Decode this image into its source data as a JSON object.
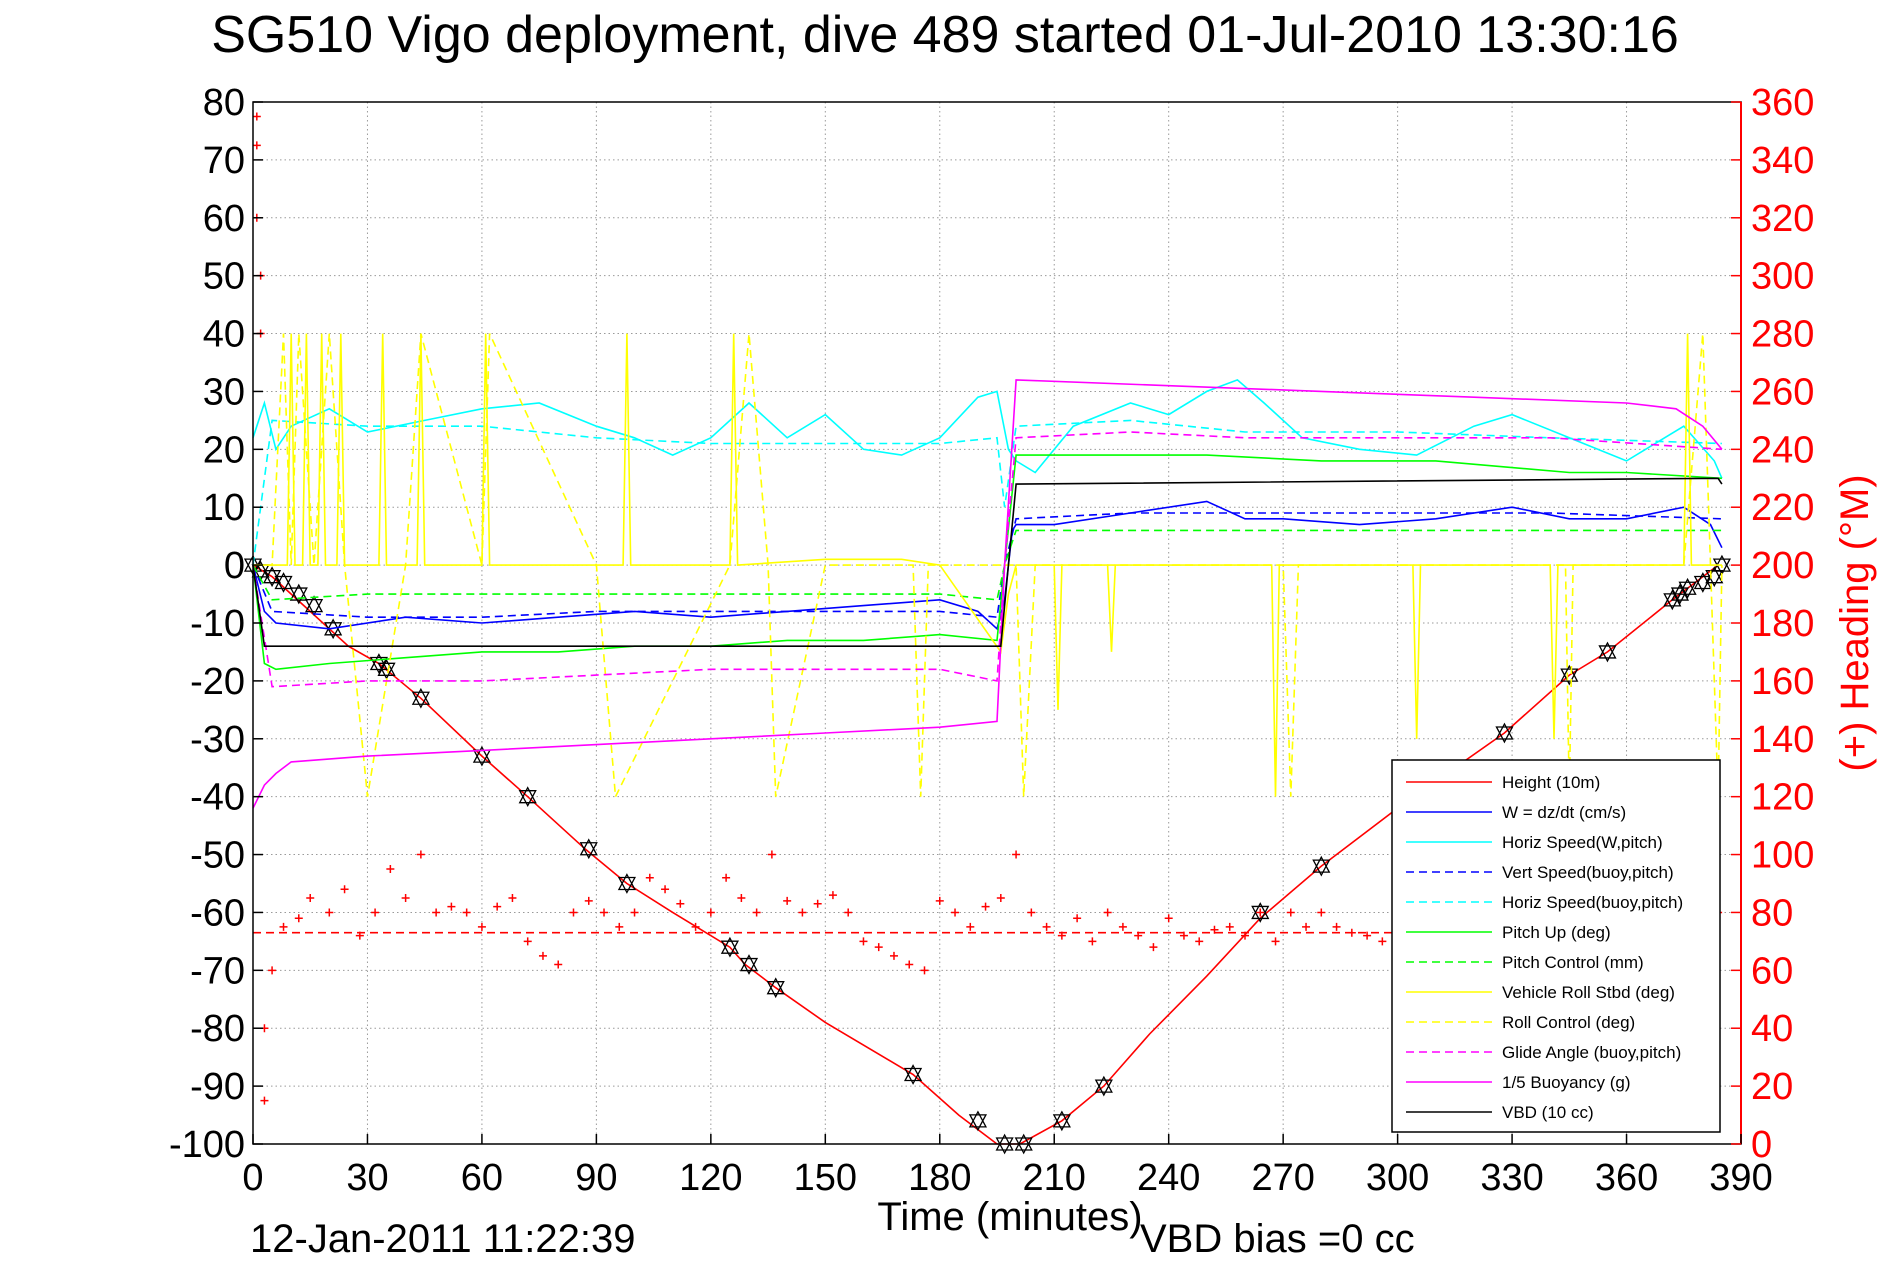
{
  "chart_data": {
    "type": "line",
    "title": "SG510 Vigo deployment, dive 489 started 01-Jul-2010 13:30:16",
    "xlabel": "Time (minutes)",
    "ylabel": "",
    "y2label": "(+) Heading (°M)",
    "footer_left": "12-Jan-2011 11:22:39",
    "footer_right": "VBD bias =0 cc",
    "xlim": [
      0,
      390
    ],
    "ylim": [
      -100,
      80
    ],
    "y2lim": [
      0,
      360
    ],
    "grid": true,
    "legend_position": "bottom-right",
    "x_ticks": [
      "0",
      "30",
      "60",
      "90",
      "120",
      "150",
      "180",
      "210",
      "240",
      "270",
      "300",
      "330",
      "360",
      "390"
    ],
    "y_ticks": [
      "80",
      "70",
      "60",
      "50",
      "40",
      "30",
      "20",
      "10",
      "0",
      "-10",
      "-20",
      "-30",
      "-40",
      "-50",
      "-60",
      "-70",
      "-80",
      "-90",
      "-100"
    ],
    "y2_ticks": [
      "360",
      "340",
      "320",
      "300",
      "280",
      "260",
      "240",
      "220",
      "200",
      "180",
      "160",
      "140",
      "120",
      "100",
      "80",
      "60",
      "40",
      "20",
      "0"
    ],
    "colors": {
      "height": "#ff0000",
      "w": "#0000ff",
      "horiz_speed": "#00ffff",
      "vert_speed_buoy": "#0000ff",
      "horiz_speed_buoy": "#00ffff",
      "pitch_up": "#00ff00",
      "pitch_control": "#00ff00",
      "roll": "#ffff00",
      "roll_control": "#ffff00",
      "glide_angle": "#ff00ff",
      "buoyancy": "#ff00ff",
      "vbd": "#000000",
      "heading": "#ff0000",
      "heading_axis": "#ff0000"
    },
    "legend": [
      {
        "key": "height",
        "label": "Height (10m)",
        "style": "solid"
      },
      {
        "key": "w",
        "label": "W = dz/dt (cm/s)",
        "style": "solid"
      },
      {
        "key": "horiz_speed",
        "label": "Horiz Speed(W,pitch)",
        "style": "solid"
      },
      {
        "key": "vert_speed_buoy",
        "label": "Vert Speed(buoy,pitch)",
        "style": "dashed"
      },
      {
        "key": "horiz_speed_buoy",
        "label": "Horiz Speed(buoy,pitch)",
        "style": "dashed"
      },
      {
        "key": "pitch_up",
        "label": "Pitch Up (deg)",
        "style": "solid"
      },
      {
        "key": "pitch_control",
        "label": "Pitch Control (mm)",
        "style": "dashed"
      },
      {
        "key": "roll",
        "label": "Vehicle Roll Stbd (deg)",
        "style": "solid"
      },
      {
        "key": "roll_control",
        "label": "Roll Control (deg)",
        "style": "dashed"
      },
      {
        "key": "glide_angle",
        "label": "Glide Angle (buoy,pitch)",
        "style": "dashed"
      },
      {
        "key": "buoyancy",
        "label": "1/5 Buoyancy (g)",
        "style": "solid"
      },
      {
        "key": "vbd",
        "label": "VBD (10 cc)",
        "style": "solid"
      }
    ],
    "series": [
      {
        "key": "height",
        "style": "solid",
        "x": [
          0,
          5,
          10,
          15,
          20,
          25,
          33,
          44,
          60,
          72,
          87,
          98,
          110,
          125,
          129,
          137,
          150,
          173,
          185,
          195,
          201,
          212,
          223,
          235,
          250,
          264,
          280,
          300,
          328,
          345,
          355,
          372,
          378,
          384
        ],
        "y": [
          0,
          -2,
          -5,
          -8,
          -11,
          -14,
          -17,
          -23,
          -33,
          -40,
          -49,
          -55,
          -60,
          -66,
          -69,
          -73,
          -79,
          -88,
          -95,
          -100,
          -100,
          -96,
          -90,
          -81,
          -71,
          -61,
          -52,
          -42,
          -29,
          -19,
          -15,
          -6,
          -3,
          0
        ]
      },
      {
        "key": "height_markers",
        "style": "markers",
        "x": [
          0,
          2,
          5,
          8,
          12,
          16,
          21,
          33,
          35,
          44,
          60,
          72,
          88,
          98,
          125,
          130,
          137,
          173,
          190,
          197,
          202,
          212,
          223,
          264,
          280,
          328,
          345,
          355,
          372,
          374,
          376,
          380,
          383,
          385
        ],
        "y": [
          0,
          -1,
          -2,
          -3,
          -5,
          -7,
          -11,
          -17,
          -18,
          -23,
          -33,
          -40,
          -49,
          -55,
          -66,
          -69,
          -73,
          -88,
          -96,
          -100,
          -100,
          -96,
          -90,
          -60,
          -52,
          -29,
          -19,
          -15,
          -6,
          -5,
          -4,
          -3,
          -2,
          0
        ]
      },
      {
        "key": "w",
        "style": "solid",
        "x": [
          0,
          3,
          6,
          20,
          40,
          60,
          80,
          100,
          120,
          140,
          160,
          180,
          190,
          195,
          197,
          199,
          200,
          210,
          230,
          250,
          260,
          270,
          290,
          310,
          330,
          345,
          360,
          375,
          382,
          385
        ],
        "y": [
          0,
          -8,
          -10,
          -11,
          -9,
          -10,
          -9,
          -8,
          -9,
          -8,
          -7,
          -6,
          -8,
          -11,
          -6,
          6,
          7,
          7,
          9,
          11,
          8,
          8,
          7,
          8,
          10,
          8,
          8,
          10,
          7,
          3
        ]
      },
      {
        "key": "horiz_speed",
        "style": "solid",
        "x": [
          0,
          3,
          6,
          10,
          20,
          30,
          45,
          60,
          75,
          90,
          100,
          110,
          120,
          130,
          140,
          150,
          160,
          170,
          180,
          190,
          195,
          198,
          200,
          205,
          215,
          230,
          240,
          250,
          258,
          265,
          275,
          290,
          305,
          320,
          330,
          345,
          360,
          375,
          383,
          385
        ],
        "y": [
          22,
          28,
          20,
          24,
          27,
          23,
          25,
          27,
          28,
          24,
          22,
          19,
          22,
          28,
          22,
          26,
          20,
          19,
          22,
          29,
          30,
          20,
          18,
          16,
          24,
          28,
          26,
          30,
          32,
          28,
          22,
          20,
          19,
          24,
          26,
          22,
          18,
          24,
          18,
          15
        ]
      },
      {
        "key": "vert_speed_buoy",
        "style": "dashed",
        "x": [
          0,
          5,
          30,
          60,
          90,
          120,
          150,
          180,
          195,
          197,
          200,
          230,
          260,
          300,
          340,
          385
        ],
        "y": [
          0,
          -8,
          -9,
          -9,
          -8,
          -8,
          -8,
          -8,
          -9,
          0,
          8,
          9,
          9,
          9,
          9,
          8
        ]
      },
      {
        "key": "horiz_speed_buoy",
        "style": "dashed",
        "x": [
          0,
          5,
          30,
          60,
          90,
          120,
          150,
          180,
          195,
          197,
          200,
          230,
          260,
          300,
          340,
          385
        ],
        "y": [
          0,
          25,
          24,
          24,
          22,
          21,
          21,
          21,
          22,
          10,
          24,
          25,
          23,
          23,
          22,
          21
        ]
      },
      {
        "key": "pitch_up",
        "style": "solid",
        "x": [
          0,
          3,
          6,
          20,
          40,
          60,
          80,
          100,
          120,
          140,
          160,
          180,
          195,
          197,
          200,
          220,
          250,
          280,
          310,
          345,
          360,
          385
        ],
        "y": [
          0,
          -17,
          -18,
          -17,
          -16,
          -15,
          -15,
          -14,
          -14,
          -13,
          -13,
          -12,
          -13,
          0,
          19,
          19,
          19,
          18,
          18,
          16,
          16,
          15
        ]
      },
      {
        "key": "pitch_control",
        "style": "dashed",
        "x": [
          0,
          5,
          30,
          60,
          90,
          120,
          150,
          180,
          195,
          197,
          200,
          230,
          260,
          300,
          340,
          385
        ],
        "y": [
          0,
          -6,
          -5,
          -5,
          -5,
          -5,
          -5,
          -5,
          -6,
          0,
          6,
          6,
          6,
          6,
          6,
          6
        ]
      },
      {
        "key": "roll",
        "style": "solid",
        "x": [
          0,
          9,
          10,
          11,
          13,
          14,
          15,
          17,
          18,
          19,
          22,
          23,
          24,
          33,
          34,
          35,
          43,
          44,
          45,
          60,
          61,
          62,
          90,
          97,
          98,
          99,
          125,
          126,
          127,
          150,
          170,
          180,
          196,
          198,
          200,
          210,
          211,
          212,
          224,
          225,
          226,
          250,
          267,
          268,
          269,
          290,
          304,
          305,
          306,
          330,
          340,
          341,
          342,
          365,
          375,
          376,
          377,
          385
        ],
        "y": [
          0,
          0,
          40,
          0,
          0,
          40,
          0,
          0,
          40,
          0,
          0,
          40,
          0,
          0,
          40,
          0,
          0,
          40,
          0,
          0,
          40,
          0,
          0,
          0,
          40,
          0,
          0,
          40,
          0,
          1,
          1,
          0,
          -15,
          -5,
          0,
          0,
          -25,
          0,
          0,
          -15,
          0,
          0,
          0,
          -40,
          0,
          0,
          0,
          -30,
          0,
          0,
          0,
          -30,
          0,
          0,
          0,
          40,
          0,
          0
        ]
      },
      {
        "key": "roll_control",
        "style": "dashed",
        "x": [
          0,
          5,
          8,
          10,
          12,
          16,
          20,
          24,
          30,
          40,
          44,
          60,
          62,
          90,
          95,
          125,
          130,
          135,
          137,
          150,
          173,
          175,
          177,
          195,
          200,
          202,
          205,
          210,
          270,
          272,
          274,
          300,
          344,
          345,
          346,
          375,
          380,
          382,
          384,
          385
        ],
        "y": [
          0,
          0,
          40,
          0,
          40,
          0,
          40,
          0,
          -40,
          0,
          40,
          0,
          40,
          0,
          -40,
          0,
          40,
          0,
          -40,
          0,
          0,
          -40,
          0,
          0,
          0,
          -40,
          0,
          0,
          0,
          -40,
          0,
          0,
          0,
          -40,
          0,
          0,
          40,
          0,
          -40,
          0
        ]
      },
      {
        "key": "glide_angle",
        "style": "dashed",
        "x": [
          0,
          5,
          30,
          60,
          90,
          120,
          150,
          180,
          195,
          197,
          200,
          230,
          260,
          300,
          340,
          385
        ],
        "y": [
          0,
          -21,
          -20,
          -20,
          -19,
          -18,
          -18,
          -18,
          -20,
          0,
          22,
          23,
          22,
          22,
          22,
          20
        ]
      },
      {
        "key": "buoyancy",
        "style": "solid",
        "x": [
          0,
          3,
          6,
          10,
          30,
          60,
          90,
          120,
          150,
          180,
          195,
          197,
          200,
          240,
          280,
          320,
          360,
          373,
          380,
          385
        ],
        "y": [
          -42,
          -38,
          -36,
          -34,
          -33,
          -32,
          -31,
          -30,
          -29,
          -28,
          -27,
          0,
          32,
          31,
          30,
          29,
          28,
          27,
          24,
          20
        ]
      },
      {
        "key": "vbd",
        "style": "solid",
        "x": [
          0,
          3,
          5,
          196,
          198,
          200,
          384,
          385
        ],
        "y": [
          0,
          -14,
          -14,
          -14,
          0,
          14,
          15,
          14
        ],
        "y_note": "VBD (10 cc)"
      },
      {
        "key": "heading",
        "style": "markers",
        "axis": "right",
        "x": [
          1,
          1,
          1,
          2,
          2,
          3,
          3,
          5,
          8,
          12,
          15,
          20,
          24,
          28,
          32,
          36,
          40,
          44,
          48,
          52,
          56,
          60,
          64,
          68,
          72,
          76,
          80,
          84,
          88,
          92,
          96,
          100,
          104,
          108,
          112,
          116,
          120,
          124,
          128,
          132,
          136,
          140,
          144,
          148,
          152,
          156,
          160,
          164,
          168,
          172,
          176,
          180,
          184,
          188,
          192,
          196,
          200,
          204,
          208,
          212,
          216,
          220,
          224,
          228,
          232,
          236,
          240,
          244,
          248,
          252,
          256,
          260,
          264,
          268,
          272,
          276,
          280,
          284,
          288,
          292,
          296,
          300,
          304,
          308,
          312,
          316,
          320,
          324,
          328,
          332,
          336,
          340,
          344,
          348,
          352,
          356,
          360,
          364,
          368,
          372,
          376,
          380,
          384
        ],
        "y": [
          355,
          345,
          320,
          300,
          280,
          40,
          15,
          60,
          75,
          78,
          85,
          80,
          88,
          72,
          80,
          95,
          85,
          100,
          80,
          82,
          80,
          75,
          82,
          85,
          70,
          65,
          62,
          80,
          84,
          80,
          75,
          80,
          92,
          88,
          83,
          75,
          80,
          92,
          85,
          80,
          100,
          84,
          80,
          83,
          86,
          80,
          70,
          68,
          65,
          62,
          60,
          84,
          80,
          75,
          82,
          85,
          100,
          80,
          75,
          72,
          78,
          70,
          80,
          75,
          72,
          68,
          78,
          72,
          70,
          74,
          75,
          72,
          80,
          70,
          80,
          75,
          80,
          75,
          73,
          72,
          70,
          75,
          80,
          78,
          75,
          72,
          80,
          78,
          75,
          70,
          72,
          80,
          85,
          80,
          75,
          78,
          80,
          75,
          70,
          75,
          80,
          78,
          80
        ]
      },
      {
        "key": "heading_mean",
        "style": "dashed",
        "axis": "right",
        "x": [
          0,
          385
        ],
        "y": [
          73,
          73
        ]
      }
    ]
  }
}
